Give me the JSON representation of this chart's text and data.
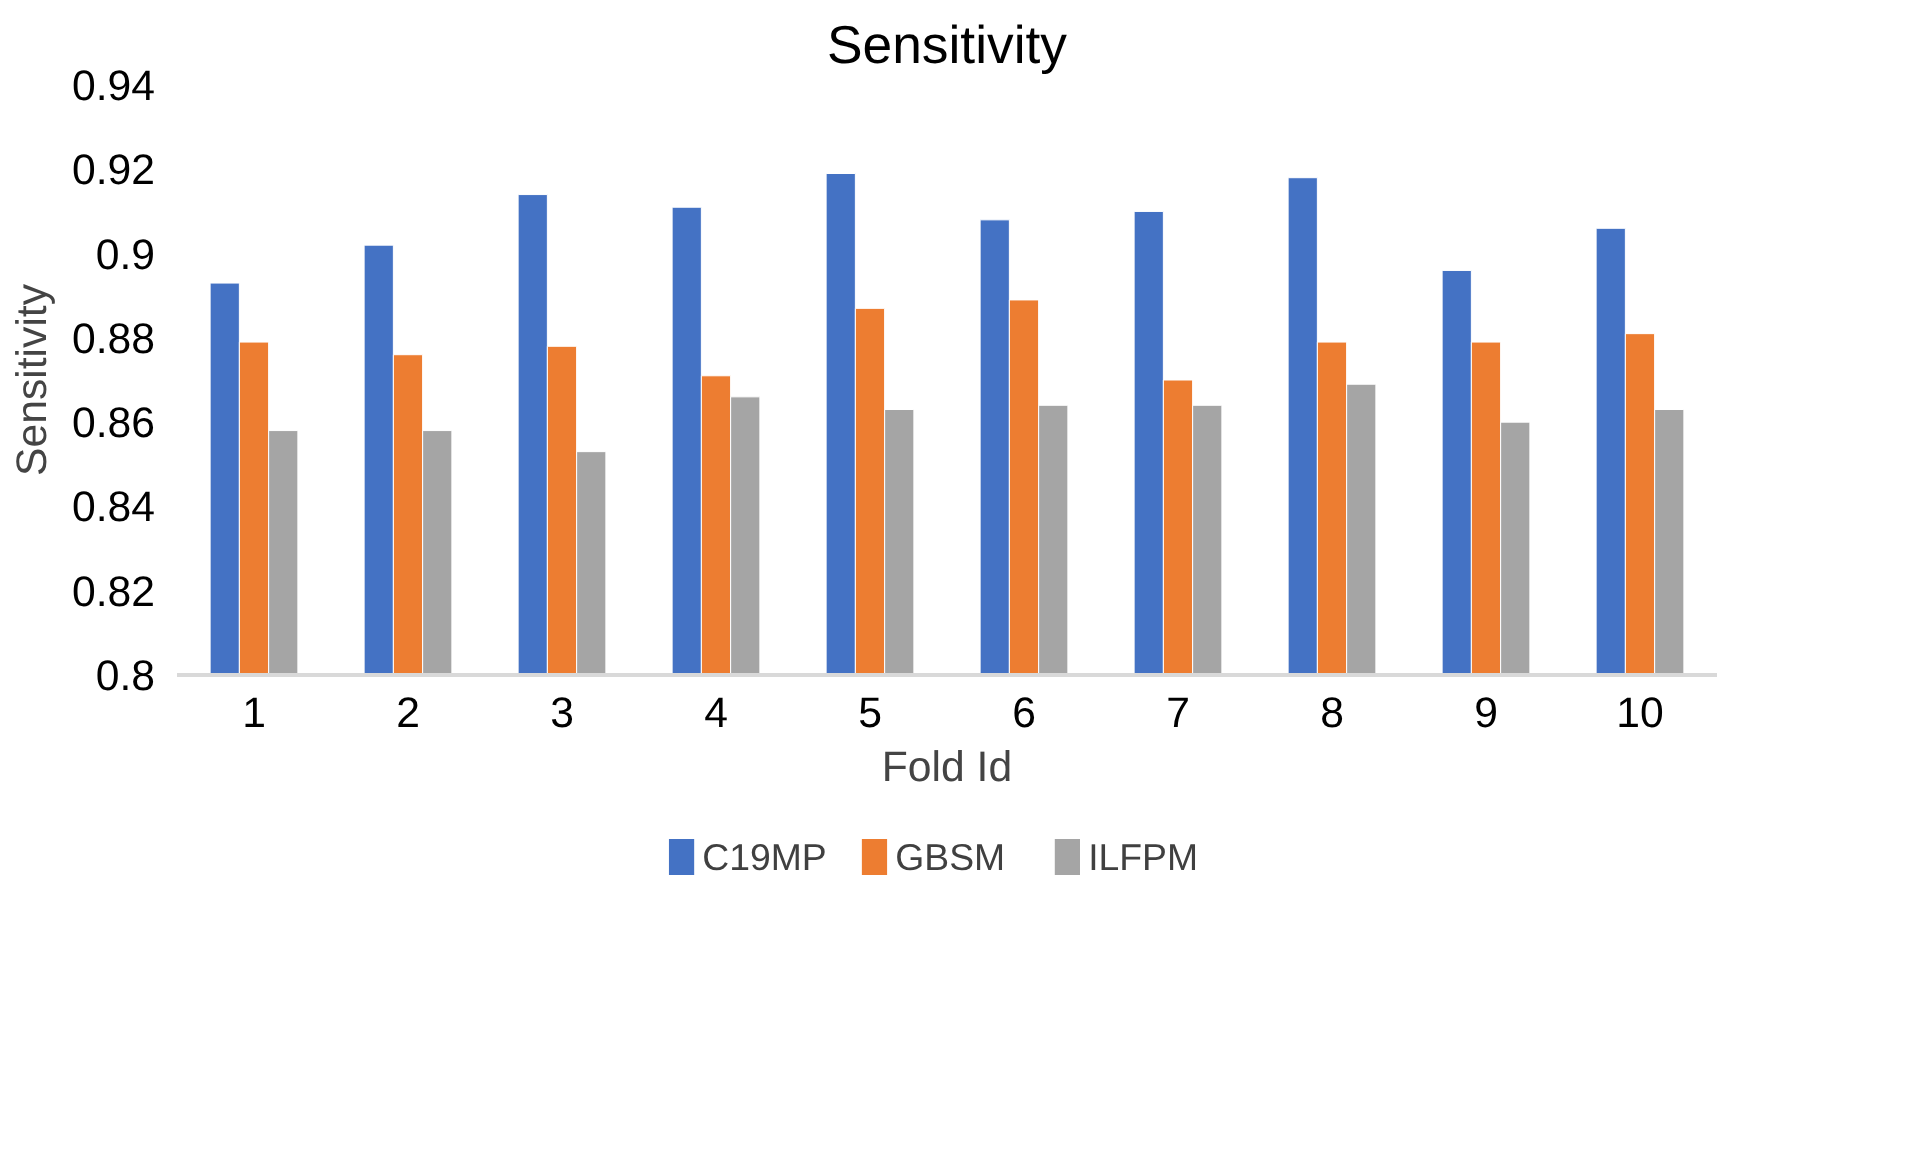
{
  "chart_data": {
    "type": "bar",
    "title": "Sensitivity",
    "xlabel": "Fold Id",
    "ylabel": "Sensitivity",
    "categories": [
      "1",
      "2",
      "3",
      "4",
      "5",
      "6",
      "7",
      "8",
      "9",
      "10"
    ],
    "series": [
      {
        "name": "C19MP",
        "color": "#4472c4",
        "values": [
          0.893,
          0.902,
          0.914,
          0.911,
          0.919,
          0.908,
          0.91,
          0.918,
          0.896,
          0.906
        ]
      },
      {
        "name": "GBSM",
        "color": "#ed7d31",
        "values": [
          0.879,
          0.876,
          0.878,
          0.871,
          0.887,
          0.889,
          0.87,
          0.879,
          0.879,
          0.881
        ]
      },
      {
        "name": "ILFPM",
        "color": "#a5a5a5",
        "values": [
          0.858,
          0.858,
          0.853,
          0.866,
          0.863,
          0.864,
          0.864,
          0.869,
          0.86,
          0.863
        ]
      }
    ],
    "ylim": [
      0.8,
      0.94
    ],
    "yticks": [
      0.8,
      0.82,
      0.84,
      0.86,
      0.88,
      0.9,
      0.92,
      0.94
    ],
    "grid": false,
    "legend": "bottom"
  }
}
